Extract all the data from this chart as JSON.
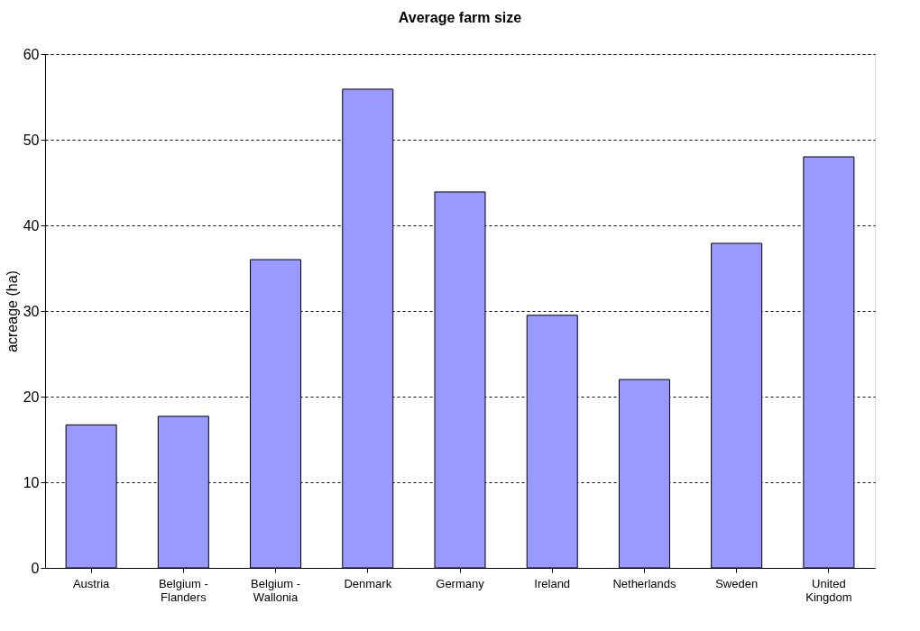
{
  "chart_data": {
    "type": "bar",
    "title": "Average farm size",
    "ylabel": "acreage (ha)",
    "categories": [
      "Austria",
      "Belgium - Flanders",
      "Belgium - Wallonia",
      "Denmark",
      "Germany",
      "Ireland",
      "Netherlands",
      "Sweden",
      "United Kingdom"
    ],
    "values": [
      16.7,
      17.7,
      36,
      55.9,
      43.9,
      29.5,
      22,
      37.9,
      48
    ],
    "color": "#9999ff",
    "ylim": [
      0,
      60
    ],
    "yticks": [
      0,
      10,
      20,
      30,
      40,
      50,
      60
    ],
    "grid": "y"
  }
}
